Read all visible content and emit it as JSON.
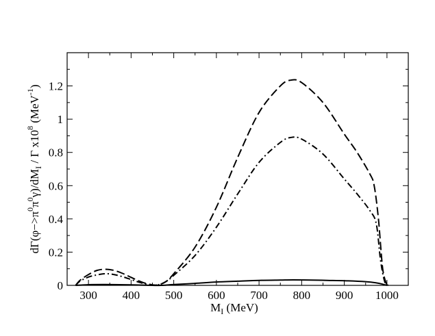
{
  "chart_data": {
    "type": "line",
    "title": "",
    "xlabel": {
      "main": "M",
      "sub": "I",
      "unit": " (MeV)"
    },
    "ylabel": {
      "p1": "dΓ(φ−>π",
      "sup1": "0",
      "p2": "π",
      "sup2": "0",
      "p3": "γ)/dM",
      "sub1": "I",
      "p4": " / Γ  x10",
      "sup3": "8",
      "p5": " (MeV",
      "sup4": "-1",
      "p6": ")"
    },
    "xlim": [
      250,
      1050
    ],
    "ylim": [
      0,
      1.4
    ],
    "x_ticks": [
      300,
      400,
      500,
      600,
      700,
      800,
      900,
      1000
    ],
    "y_ticks": [
      0,
      0.2,
      0.4,
      0.6,
      0.8,
      1.0,
      1.2
    ],
    "y_tick_labels": [
      "0",
      "0.2",
      "0.4",
      "0.6",
      "0.8",
      "1",
      "1.2"
    ],
    "series": [
      {
        "name": "solid",
        "style": "solid",
        "x": [
          270,
          300,
          340,
          400,
          450,
          470,
          500,
          550,
          600,
          650,
          700,
          750,
          780,
          820,
          860,
          900,
          950,
          975,
          990,
          1000
        ],
        "y": [
          0,
          0.004,
          0.005,
          0.003,
          0,
          0,
          0.005,
          0.012,
          0.02,
          0.025,
          0.03,
          0.032,
          0.033,
          0.032,
          0.03,
          0.028,
          0.022,
          0.015,
          0.007,
          0
        ]
      },
      {
        "name": "dashed",
        "style": "dashed",
        "x": [
          270,
          280,
          300,
          320,
          340,
          360,
          380,
          400,
          420,
          440,
          460,
          480,
          500,
          550,
          600,
          650,
          700,
          750,
          775,
          800,
          850,
          900,
          930,
          960,
          970,
          980,
          990,
          1000
        ],
        "y": [
          0,
          0.03,
          0.065,
          0.09,
          0.097,
          0.09,
          0.072,
          0.048,
          0.025,
          0.008,
          0.002,
          0.02,
          0.07,
          0.23,
          0.47,
          0.77,
          1.04,
          1.2,
          1.235,
          1.22,
          1.1,
          0.91,
          0.8,
          0.67,
          0.6,
          0.4,
          0.1,
          0
        ]
      },
      {
        "name": "dash-dot",
        "style": "dashdot",
        "x": [
          270,
          280,
          300,
          320,
          340,
          360,
          380,
          400,
          420,
          440,
          460,
          480,
          500,
          550,
          600,
          650,
          700,
          750,
          775,
          800,
          850,
          900,
          930,
          960,
          975,
          985,
          995,
          1005
        ],
        "y": [
          0,
          0.025,
          0.05,
          0.063,
          0.07,
          0.065,
          0.052,
          0.035,
          0.018,
          0.005,
          0.002,
          0.02,
          0.06,
          0.18,
          0.35,
          0.55,
          0.74,
          0.86,
          0.89,
          0.88,
          0.79,
          0.64,
          0.55,
          0.45,
          0.37,
          0.15,
          0.02,
          0
        ]
      }
    ]
  }
}
